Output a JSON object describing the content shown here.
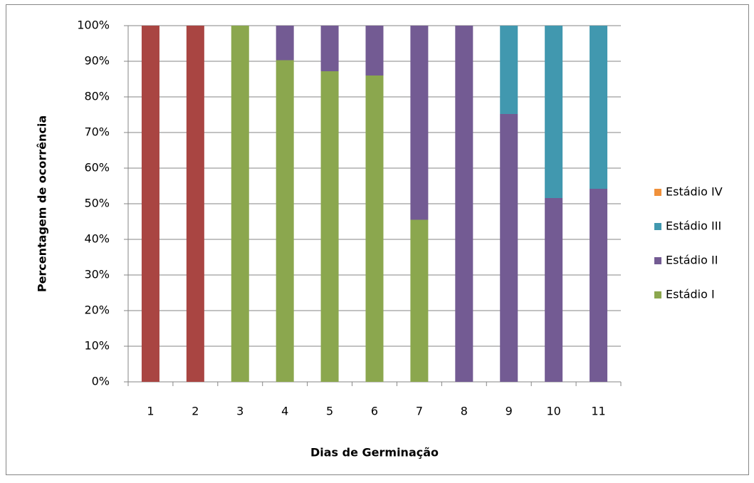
{
  "chart_data": {
    "type": "stacked_bar",
    "x_label": "Dias de Germinação",
    "y_label": "Percentagem de ocorrência",
    "categories": [
      "1",
      "2",
      "3",
      "4",
      "5",
      "6",
      "7",
      "8",
      "9",
      "10",
      "11"
    ],
    "series": [
      {
        "color": "#a94542",
        "values": [
          100,
          100,
          0,
          0,
          0,
          0,
          0,
          0,
          0,
          0,
          0
        ]
      },
      {
        "name": "Estádio I",
        "color": "#8ba74e",
        "values": [
          0,
          0,
          100,
          90.3,
          87.2,
          86,
          45.5,
          0,
          0,
          0,
          0
        ]
      },
      {
        "name": "Estádio II",
        "color": "#735b93",
        "values": [
          0,
          0,
          0,
          9.7,
          12.8,
          14,
          54.5,
          100,
          75.2,
          51.6,
          54.2
        ]
      },
      {
        "name": "Estádio III",
        "color": "#4198af",
        "values": [
          0,
          0,
          0,
          0,
          0,
          0,
          0,
          0,
          24.8,
          48.4,
          45.8
        ]
      },
      {
        "name": "Estádio IV",
        "color": "#f0913b",
        "values": [
          0,
          0,
          0,
          0,
          0,
          0,
          0,
          0,
          0,
          0,
          0
        ]
      }
    ],
    "ylim": [
      0,
      100
    ],
    "yticks": [
      {
        "value": 0,
        "label": "0%"
      },
      {
        "value": 10,
        "label": "10%"
      },
      {
        "value": 20,
        "label": "20%"
      },
      {
        "value": 30,
        "label": "30%"
      },
      {
        "value": 40,
        "label": "40%"
      },
      {
        "value": 50,
        "label": "50%"
      },
      {
        "value": 60,
        "label": "60%"
      },
      {
        "value": 70,
        "label": "70%"
      },
      {
        "value": 80,
        "label": "80%"
      },
      {
        "value": 90,
        "label": "90%"
      },
      {
        "value": 100,
        "label": "100%"
      }
    ],
    "grid": true,
    "legend": "right"
  }
}
